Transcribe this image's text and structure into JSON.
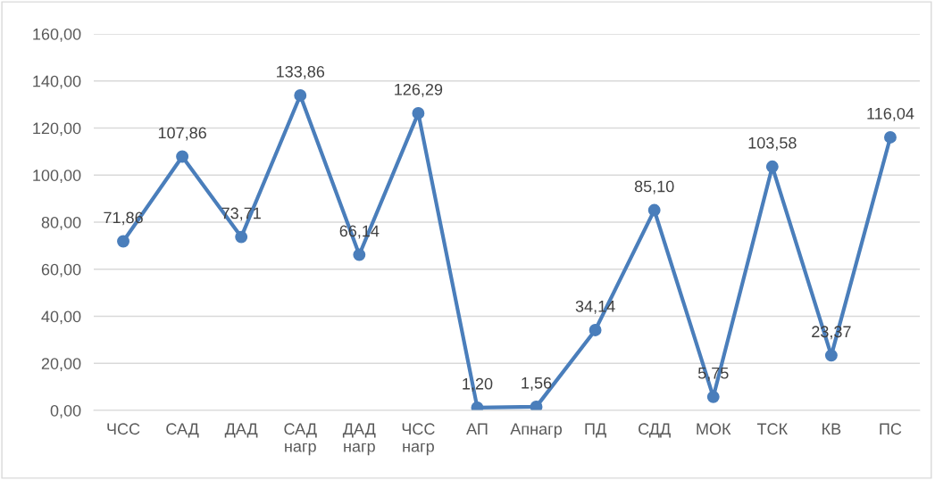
{
  "chart_data": {
    "type": "line",
    "categories": [
      "ЧСС",
      "САД",
      "ДАД",
      "САД\nнагр",
      "ДАД\nнагр",
      "ЧСС\nнагр",
      "АП",
      "Апнагр",
      "ПД",
      "СДД",
      "МОК",
      "ТСК",
      "КВ",
      "ПС"
    ],
    "series": [
      {
        "color": "#4a7ebb",
        "values": [
          71.86,
          107.86,
          73.71,
          133.86,
          66.14,
          126.29,
          1.2,
          1.56,
          34.14,
          85.1,
          5.75,
          103.58,
          23.37,
          116.04
        ],
        "value_labels": [
          "71,86",
          "107,86",
          "73,71",
          "133,86",
          "66,14",
          "126,29",
          "1,20",
          "1,56",
          "34,14",
          "85,10",
          "5,75",
          "103,58",
          "23,37",
          "116,04"
        ]
      }
    ],
    "ylim": [
      0,
      160
    ],
    "yticks": [
      {
        "value": 0,
        "label": "0,00"
      },
      {
        "value": 20,
        "label": "20,00"
      },
      {
        "value": 40,
        "label": "40,00"
      },
      {
        "value": 60,
        "label": "60,00"
      },
      {
        "value": 80,
        "label": "80,00"
      },
      {
        "value": 100,
        "label": "100,00"
      },
      {
        "value": 120,
        "label": "120,00"
      },
      {
        "value": 140,
        "label": "140,00"
      },
      {
        "value": 160,
        "label": "160,00"
      }
    ],
    "grid": "y",
    "marker": "circle",
    "line_style": "solid"
  }
}
